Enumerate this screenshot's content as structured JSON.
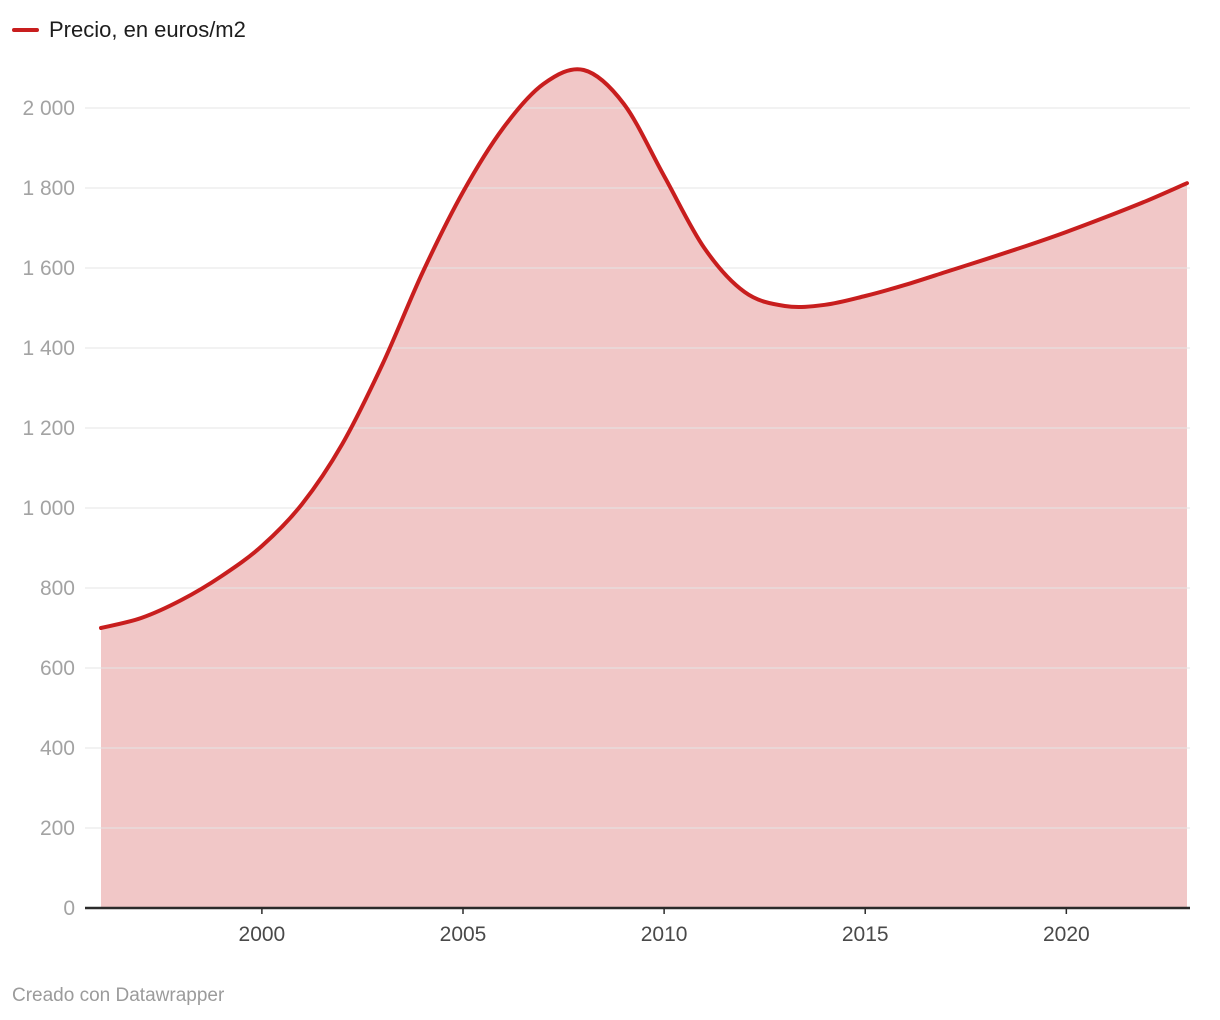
{
  "chart_data": {
    "type": "area",
    "title": "",
    "legend": [
      {
        "label": "Precio, en euros/m2",
        "color": "#c81e1e"
      }
    ],
    "x": [
      1996,
      1997,
      1998,
      1999,
      2000,
      2001,
      2002,
      2003,
      2004,
      2005,
      2006,
      2007,
      2008,
      2009,
      2010,
      2011,
      2012,
      2013,
      2014,
      2015,
      2016,
      2017,
      2018,
      2019,
      2020,
      2021,
      2022,
      2023
    ],
    "series": [
      {
        "name": "Precio, en euros/m2",
        "values": [
          700,
          725,
          770,
          830,
          905,
          1010,
          1160,
          1360,
          1590,
          1790,
          1950,
          2060,
          2095,
          2010,
          1830,
          1650,
          1540,
          1505,
          1508,
          1530,
          1558,
          1590,
          1622,
          1655,
          1690,
          1728,
          1768,
          1812
        ]
      }
    ],
    "ylim": [
      0,
      2100
    ],
    "yticks": [
      0,
      200,
      400,
      600,
      800,
      1000,
      1200,
      1400,
      1600,
      1800,
      2000
    ],
    "ytick_labels": [
      "0",
      "200",
      "400",
      "600",
      "800",
      "1 000",
      "1 200",
      "1 400",
      "1 600",
      "1 800",
      "2 000"
    ],
    "xticks": [
      2000,
      2005,
      2010,
      2015,
      2020
    ],
    "xtick_labels": [
      "2000",
      "2005",
      "2010",
      "2015",
      "2020"
    ],
    "grid": true,
    "legend_position": "top-left",
    "area_opacity": 0.25,
    "footer": "Creado con Datawrapper"
  },
  "colors": {
    "accent": "#c81e1e",
    "grid": "#e4e4e4",
    "axis": "#2b2b2b",
    "y_label": "#a3a3a3",
    "x_label": "#494949",
    "footer_text": "#9b9b9b",
    "legend_text": "#1d1d1d"
  }
}
